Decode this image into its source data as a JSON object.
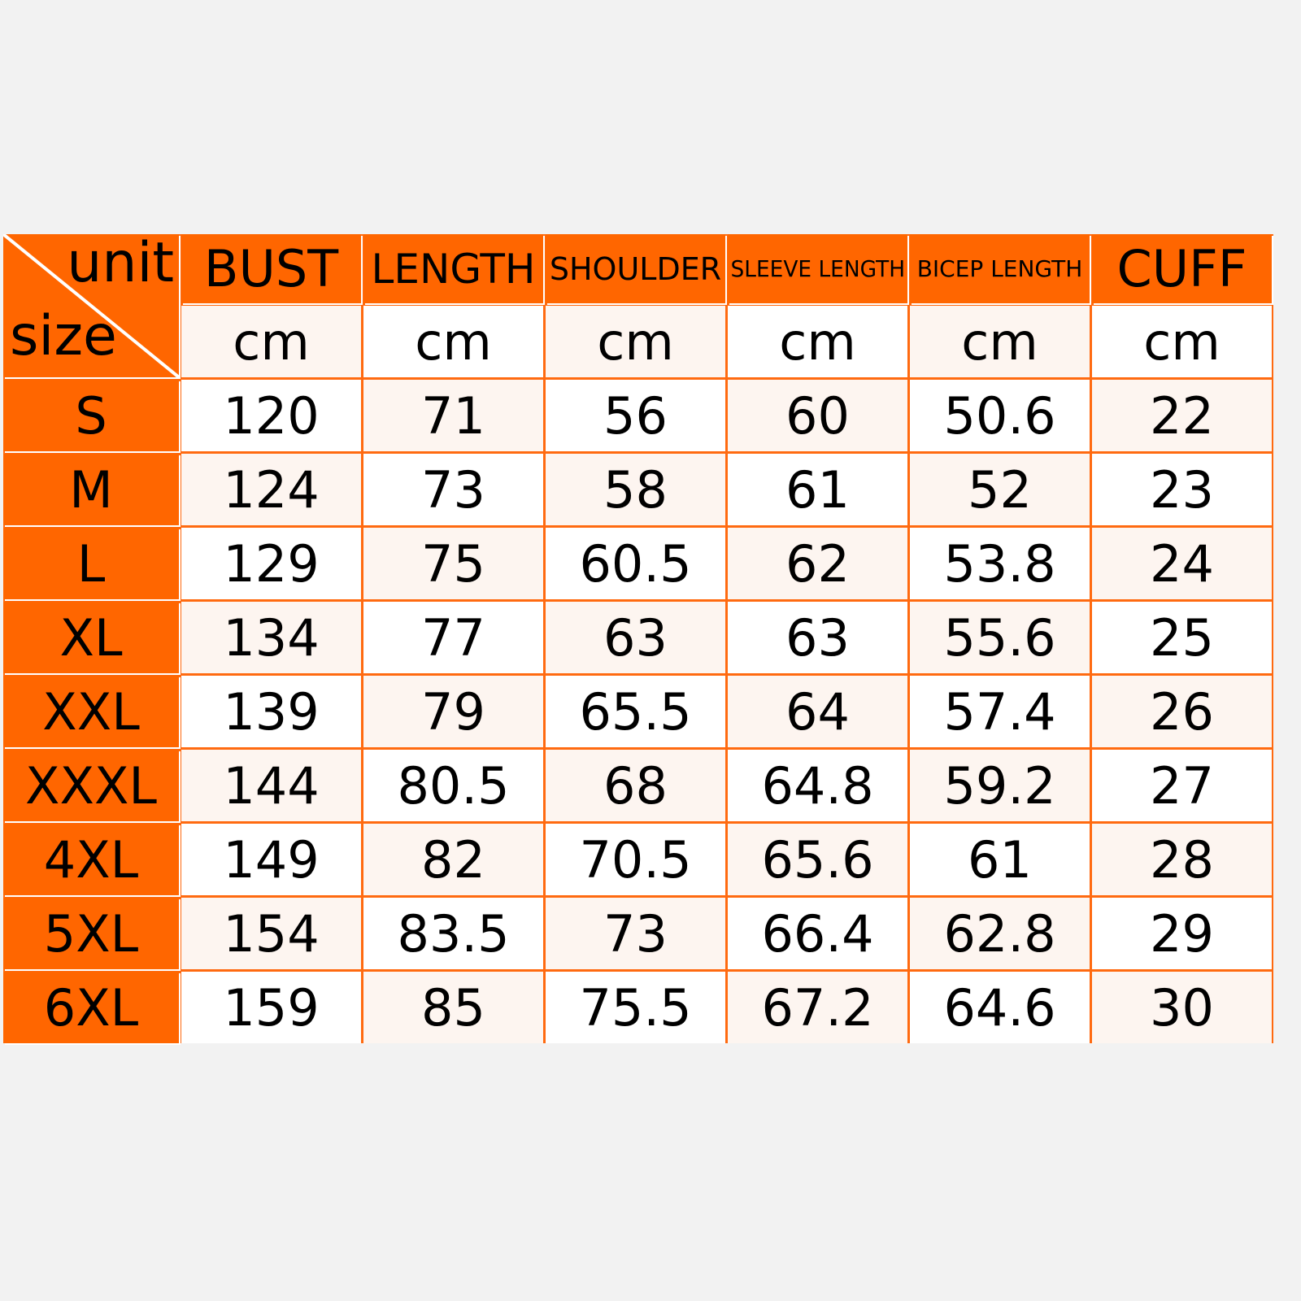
{
  "colors": {
    "header": "#ff6600",
    "cell_light": "#fdf5f0",
    "cell_white": "#ffffff",
    "background": "#f2f2f2"
  },
  "corner": {
    "unit_label": "unit",
    "size_label": "size"
  },
  "columns": [
    {
      "label": "BUST",
      "unit": "cm"
    },
    {
      "label": "LENGTH",
      "unit": "cm"
    },
    {
      "label": "SHOULDER",
      "unit": "cm"
    },
    {
      "label": "SLEEVE LENGTH",
      "unit": "cm"
    },
    {
      "label": "BICEP LENGTH",
      "unit": "cm"
    },
    {
      "label": "CUFF",
      "unit": "cm"
    }
  ],
  "rows": [
    {
      "size": "S",
      "values": [
        "120",
        "71",
        "56",
        "60",
        "50.6",
        "22"
      ]
    },
    {
      "size": "M",
      "values": [
        "124",
        "73",
        "58",
        "61",
        "52",
        "23"
      ]
    },
    {
      "size": "L",
      "values": [
        "129",
        "75",
        "60.5",
        "62",
        "53.8",
        "24"
      ]
    },
    {
      "size": "XL",
      "values": [
        "134",
        "77",
        "63",
        "63",
        "55.6",
        "25"
      ]
    },
    {
      "size": "XXL",
      "values": [
        "139",
        "79",
        "65.5",
        "64",
        "57.4",
        "26"
      ]
    },
    {
      "size": "XXXL",
      "values": [
        "144",
        "80.5",
        "68",
        "64.8",
        "59.2",
        "27"
      ]
    },
    {
      "size": "4XL",
      "values": [
        "149",
        "82",
        "70.5",
        "65.6",
        "61",
        "28"
      ]
    },
    {
      "size": "5XL",
      "values": [
        "154",
        "83.5",
        "73",
        "66.4",
        "62.8",
        "29"
      ]
    },
    {
      "size": "6XL",
      "values": [
        "159",
        "85",
        "75.5",
        "67.2",
        "64.6",
        "30"
      ]
    }
  ]
}
